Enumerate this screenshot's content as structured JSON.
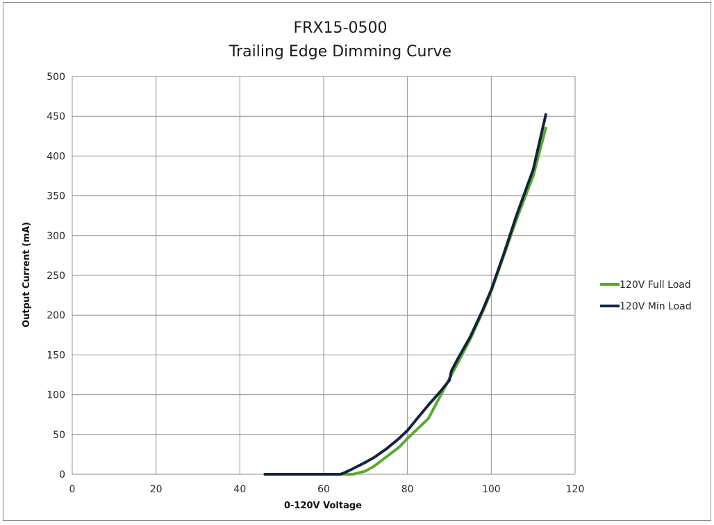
{
  "chart_data": {
    "type": "line",
    "title": "FRX15-0500",
    "subtitle": "Trailing Edge Dimming Curve",
    "xlabel": "0-120V Voltage",
    "ylabel": "Output Current (mA)",
    "xlim": [
      0,
      120
    ],
    "ylim": [
      0,
      500
    ],
    "xticks": [
      "0",
      "20",
      "40",
      "60",
      "80",
      "100",
      "120"
    ],
    "yticks": [
      "0",
      "50",
      "100",
      "150",
      "200",
      "250",
      "300",
      "350",
      "400",
      "450",
      "500"
    ],
    "grid": true,
    "legend_position": "right",
    "series": [
      {
        "name": "120V Full Load",
        "color": "#5aaa32",
        "x": [
          46,
          55,
          60,
          65,
          67,
          70,
          72,
          75,
          78,
          80,
          82,
          85,
          88,
          90,
          92,
          95,
          98,
          100,
          103,
          106,
          110,
          113
        ],
        "y": [
          0,
          0,
          0,
          0,
          0,
          4,
          10,
          22,
          34,
          45,
          55,
          70,
          100,
          120,
          140,
          170,
          205,
          230,
          275,
          320,
          375,
          435
        ]
      },
      {
        "name": "120V Min Load",
        "color": "#14233a",
        "x": [
          46,
          55,
          60,
          64,
          65,
          67,
          70,
          72,
          75,
          78,
          80,
          82,
          85,
          88,
          90,
          90.5,
          92,
          95,
          98,
          100,
          103,
          106,
          110,
          113
        ],
        "y": [
          0,
          0,
          0,
          0,
          2,
          7,
          15,
          21,
          32,
          45,
          55,
          68,
          87,
          105,
          118,
          130,
          145,
          173,
          207,
          232,
          277,
          325,
          383,
          452
        ]
      }
    ]
  }
}
